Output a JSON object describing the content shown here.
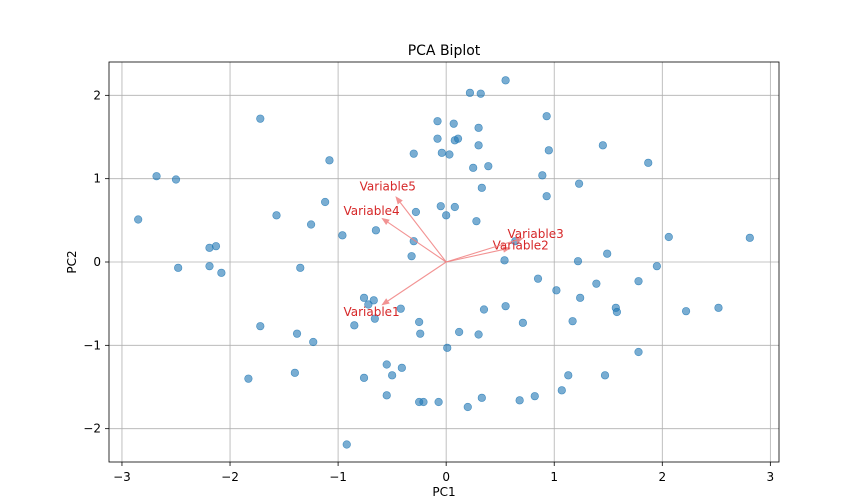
{
  "chart_data": {
    "type": "scatter",
    "title": "PCA Biplot",
    "xlabel": "PC1",
    "ylabel": "PC2",
    "xlim": [
      -3.12,
      3.08
    ],
    "ylim": [
      -2.4,
      2.4
    ],
    "x_ticks": [
      -3,
      -2,
      -1,
      0,
      1,
      2,
      3
    ],
    "y_ticks": [
      -2,
      -1,
      0,
      1,
      2
    ],
    "x_tick_labels": [
      "−3",
      "−2",
      "−1",
      "0",
      "1",
      "2",
      "3"
    ],
    "y_tick_labels": [
      "−2",
      "−1",
      "0",
      "1",
      "2"
    ],
    "grid": true,
    "point_color": "#1f77b4",
    "point_alpha": 0.6,
    "arrow_color": "#f08080",
    "label_color": "#d62728",
    "points": [
      {
        "x": 0.55,
        "y": 2.18
      },
      {
        "x": 0.22,
        "y": 2.03
      },
      {
        "x": 0.32,
        "y": 2.02
      },
      {
        "x": -1.72,
        "y": 1.72
      },
      {
        "x": 0.93,
        "y": 1.75
      },
      {
        "x": -0.08,
        "y": 1.69
      },
      {
        "x": 0.07,
        "y": 1.66
      },
      {
        "x": 0.3,
        "y": 1.61
      },
      {
        "x": -0.08,
        "y": 1.48
      },
      {
        "x": 0.08,
        "y": 1.46
      },
      {
        "x": 0.11,
        "y": 1.48
      },
      {
        "x": 0.3,
        "y": 1.4
      },
      {
        "x": 1.45,
        "y": 1.4
      },
      {
        "x": -0.3,
        "y": 1.3
      },
      {
        "x": -0.04,
        "y": 1.31
      },
      {
        "x": 0.03,
        "y": 1.29
      },
      {
        "x": 0.95,
        "y": 1.34
      },
      {
        "x": -1.08,
        "y": 1.22
      },
      {
        "x": 0.25,
        "y": 1.13
      },
      {
        "x": 0.39,
        "y": 1.15
      },
      {
        "x": 1.87,
        "y": 1.19
      },
      {
        "x": -2.68,
        "y": 1.03
      },
      {
        "x": -2.5,
        "y": 0.99
      },
      {
        "x": 0.89,
        "y": 1.04
      },
      {
        "x": 1.23,
        "y": 0.94
      },
      {
        "x": 0.33,
        "y": 0.89
      },
      {
        "x": 0.93,
        "y": 0.79
      },
      {
        "x": -1.12,
        "y": 0.72
      },
      {
        "x": -0.05,
        "y": 0.67
      },
      {
        "x": 0.08,
        "y": 0.66
      },
      {
        "x": -0.28,
        "y": 0.6
      },
      {
        "x": -1.57,
        "y": 0.56
      },
      {
        "x": 0.0,
        "y": 0.56
      },
      {
        "x": -2.85,
        "y": 0.51
      },
      {
        "x": 0.28,
        "y": 0.49
      },
      {
        "x": -1.25,
        "y": 0.45
      },
      {
        "x": -0.65,
        "y": 0.38
      },
      {
        "x": -0.96,
        "y": 0.32
      },
      {
        "x": 2.06,
        "y": 0.3
      },
      {
        "x": 2.81,
        "y": 0.29
      },
      {
        "x": -0.3,
        "y": 0.25
      },
      {
        "x": 0.64,
        "y": 0.25
      },
      {
        "x": -2.13,
        "y": 0.19
      },
      {
        "x": -2.19,
        "y": 0.17
      },
      {
        "x": 1.49,
        "y": 0.1
      },
      {
        "x": -0.32,
        "y": 0.07
      },
      {
        "x": 0.54,
        "y": 0.02
      },
      {
        "x": 1.22,
        "y": 0.01
      },
      {
        "x": -2.48,
        "y": -0.07
      },
      {
        "x": -2.19,
        "y": -0.05
      },
      {
        "x": -1.35,
        "y": -0.07
      },
      {
        "x": 1.95,
        "y": -0.05
      },
      {
        "x": -2.08,
        "y": -0.13
      },
      {
        "x": 0.85,
        "y": -0.2
      },
      {
        "x": 1.78,
        "y": -0.23
      },
      {
        "x": 1.39,
        "y": -0.26
      },
      {
        "x": 1.02,
        "y": -0.34
      },
      {
        "x": 1.24,
        "y": -0.43
      },
      {
        "x": -0.76,
        "y": -0.43
      },
      {
        "x": -0.67,
        "y": -0.46
      },
      {
        "x": -0.72,
        "y": -0.51
      },
      {
        "x": 0.55,
        "y": -0.53
      },
      {
        "x": 1.57,
        "y": -0.55
      },
      {
        "x": 2.52,
        "y": -0.55
      },
      {
        "x": -0.42,
        "y": -0.56
      },
      {
        "x": 0.35,
        "y": -0.57
      },
      {
        "x": 1.58,
        "y": -0.6
      },
      {
        "x": 2.22,
        "y": -0.59
      },
      {
        "x": -0.66,
        "y": -0.68
      },
      {
        "x": -0.25,
        "y": -0.72
      },
      {
        "x": 1.17,
        "y": -0.71
      },
      {
        "x": 0.71,
        "y": -0.73
      },
      {
        "x": -1.72,
        "y": -0.77
      },
      {
        "x": -0.85,
        "y": -0.76
      },
      {
        "x": 0.12,
        "y": -0.84
      },
      {
        "x": -1.38,
        "y": -0.86
      },
      {
        "x": -0.24,
        "y": -0.86
      },
      {
        "x": 0.3,
        "y": -0.87
      },
      {
        "x": -1.23,
        "y": -0.96
      },
      {
        "x": 0.01,
        "y": -1.03
      },
      {
        "x": 1.78,
        "y": -1.08
      },
      {
        "x": -0.55,
        "y": -1.23
      },
      {
        "x": -0.41,
        "y": -1.27
      },
      {
        "x": -0.5,
        "y": -1.36
      },
      {
        "x": -1.4,
        "y": -1.33
      },
      {
        "x": 1.13,
        "y": -1.36
      },
      {
        "x": 1.47,
        "y": -1.36
      },
      {
        "x": -1.83,
        "y": -1.4
      },
      {
        "x": -0.76,
        "y": -1.39
      },
      {
        "x": 1.07,
        "y": -1.54
      },
      {
        "x": -0.55,
        "y": -1.6
      },
      {
        "x": 0.82,
        "y": -1.61
      },
      {
        "x": 0.33,
        "y": -1.63
      },
      {
        "x": 0.68,
        "y": -1.66
      },
      {
        "x": -0.25,
        "y": -1.68
      },
      {
        "x": -0.21,
        "y": -1.68
      },
      {
        "x": -0.07,
        "y": -1.68
      },
      {
        "x": 0.2,
        "y": -1.74
      },
      {
        "x": -0.92,
        "y": -2.19
      }
    ],
    "loadings": [
      {
        "name": "Variable1",
        "x": -0.6,
        "y": -0.52
      },
      {
        "name": "Variable2",
        "x": 0.6,
        "y": 0.17
      },
      {
        "name": "Variable3",
        "x": 0.72,
        "y": 0.29
      },
      {
        "name": "Variable4",
        "x": -0.6,
        "y": 0.53
      },
      {
        "name": "Variable5",
        "x": -0.47,
        "y": 0.79
      }
    ]
  }
}
